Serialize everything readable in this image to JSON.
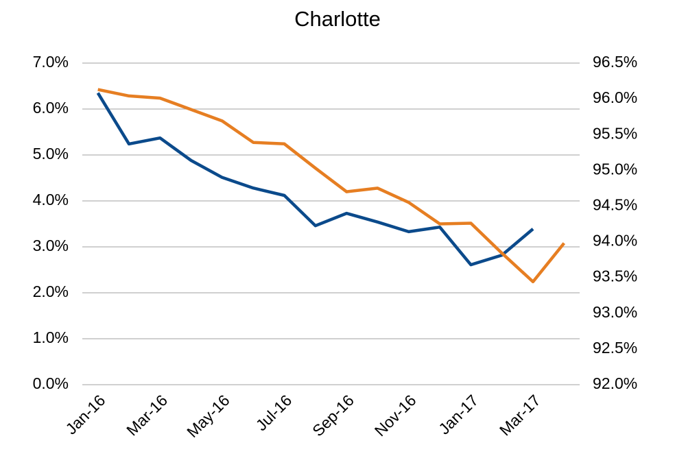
{
  "chart_data": {
    "type": "line",
    "title": "Charlotte",
    "categories": [
      "Jan-16",
      null,
      "Mar-16",
      null,
      "May-16",
      null,
      "Jul-16",
      null,
      "Sep-16",
      null,
      "Nov-16",
      null,
      "Jan-17",
      null,
      "Mar-17",
      null
    ],
    "series": [
      {
        "color": "#0b4a8b",
        "values": [
          6.35,
          5.24,
          5.37,
          4.88,
          4.51,
          4.28,
          4.12,
          3.46,
          3.73,
          3.54,
          3.33,
          3.43,
          2.61,
          2.82,
          3.39,
          null
        ]
      },
      {
        "color": "#e67e22",
        "axis": "y2",
        "values": [
          96.13,
          96.04,
          96.01,
          95.85,
          95.69,
          95.39,
          95.37,
          95.03,
          94.7,
          94.75,
          94.55,
          94.25,
          94.26,
          93.84,
          93.44,
          93.98
        ]
      }
    ],
    "ylim": [
      0,
      7
    ],
    "yticks": [
      {
        "value": 0,
        "label": "0.0%"
      },
      {
        "value": 1,
        "label": "1.0%"
      },
      {
        "value": 2,
        "label": "2.0%"
      },
      {
        "value": 3,
        "label": "3.0%"
      },
      {
        "value": 4,
        "label": "4.0%"
      },
      {
        "value": 5,
        "label": "5.0%"
      },
      {
        "value": 6,
        "label": "6.0%"
      },
      {
        "value": 7,
        "label": "7.0%"
      }
    ],
    "y2lim": [
      92,
      96.5
    ],
    "y2ticks": [
      {
        "value": 92,
        "label": "92.0%"
      },
      {
        "value": 92.5,
        "label": "92.5%"
      },
      {
        "value": 93,
        "label": "93.0%"
      },
      {
        "value": 93.5,
        "label": "93.5%"
      },
      {
        "value": 94,
        "label": "94.0%"
      },
      {
        "value": 94.5,
        "label": "94.5%"
      },
      {
        "value": 95,
        "label": "95.0%"
      },
      {
        "value": 95.5,
        "label": "95.5%"
      },
      {
        "value": 96,
        "label": "96.0%"
      },
      {
        "value": 96.5,
        "label": "96.5%"
      }
    ],
    "grid": true
  }
}
